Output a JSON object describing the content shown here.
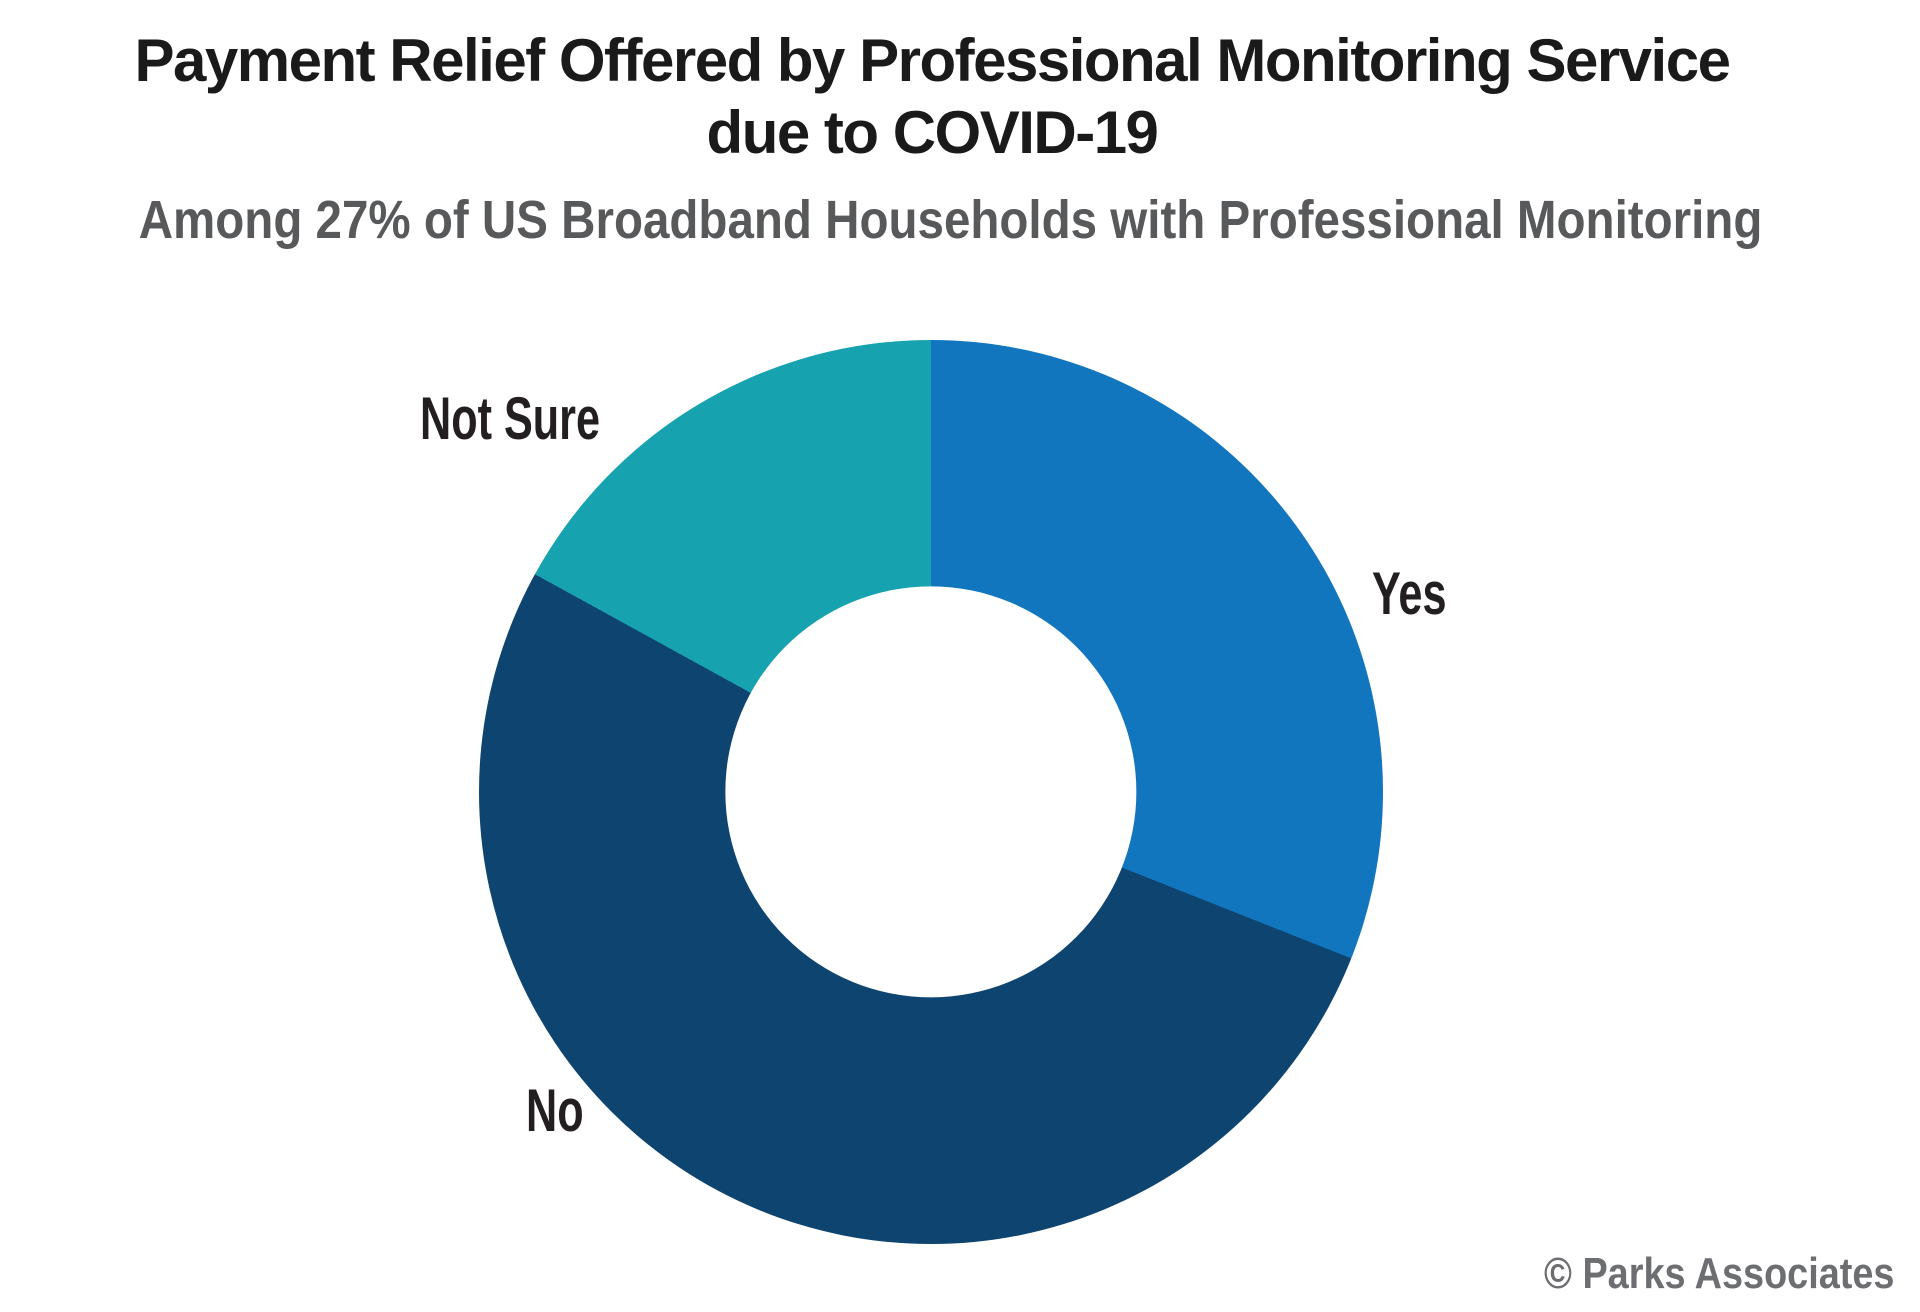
{
  "page": {
    "background": "#FFFFFF"
  },
  "header": {
    "title_line1": "Payment Relief Offered by Professional Monitoring Service",
    "title_line2": "due to COVID-19",
    "title_color": "#1A1A1A",
    "subtitle": "Among 27% of US Broadband Households with Professional Monitoring",
    "subtitle_color": "#58595B"
  },
  "chart_data": {
    "type": "pie",
    "variant": "donut",
    "title": "Payment Relief Offered by Professional Monitoring Service due to COVID-19",
    "subtitle": "Among 27% of US Broadband Households with Professional Monitoring",
    "categories": [
      "Yes",
      "No",
      "Not Sure"
    ],
    "values": [
      31,
      52,
      17
    ],
    "values_are_estimates_from_angles": true,
    "colors": [
      "#1276BE",
      "#0E4470",
      "#17A2B0"
    ],
    "start_angle_deg": 0,
    "direction": "clockwise",
    "inner_radius_ratio": 0.455,
    "label_color": "#231F20",
    "legend_position": "direct segment labels (no legend box)",
    "grid": false
  },
  "footer": {
    "credit": "© Parks Associates",
    "credit_color": "#6D6E71"
  }
}
